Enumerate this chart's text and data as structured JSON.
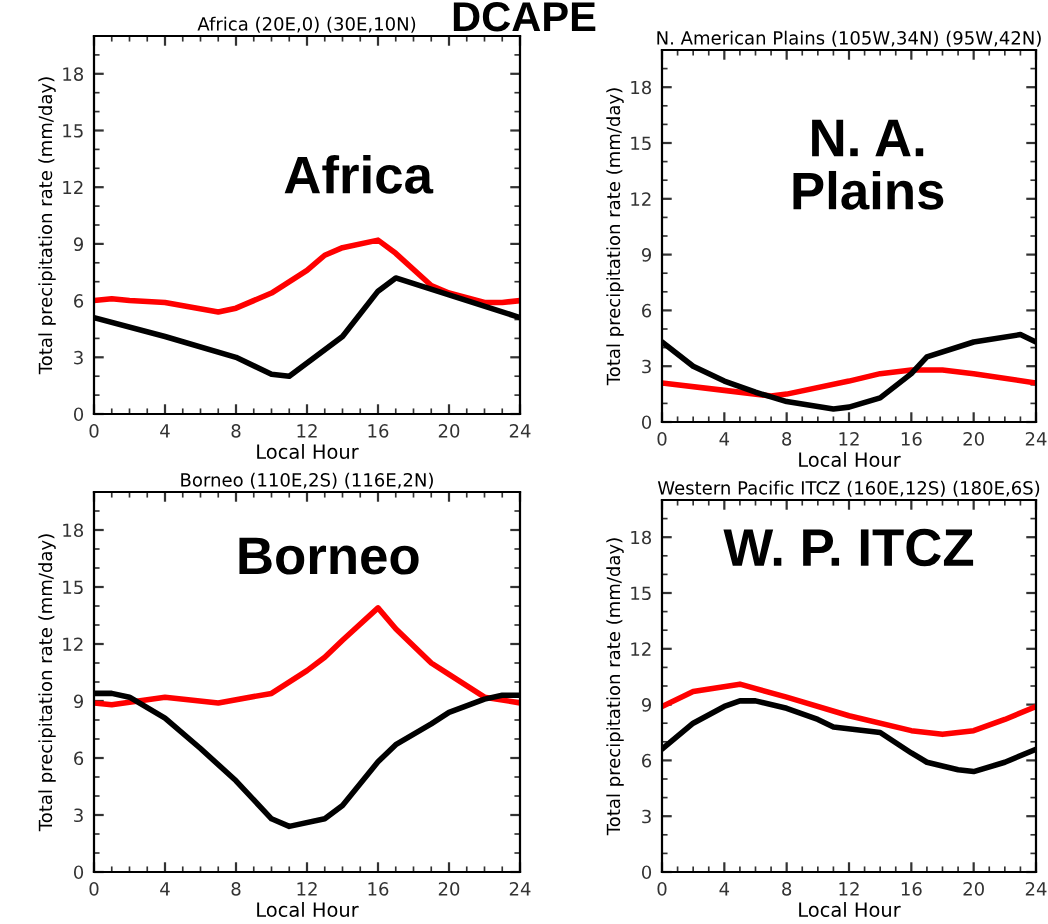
{
  "chart_data": [
    {
      "type": "line",
      "title": "Africa (20E,0) (30E,10N)",
      "xlabel": "Local Hour",
      "ylabel": "Total precipitation rate (mm/day)",
      "annotations": [
        "Africa",
        "DCAPE"
      ],
      "xlim": [
        0,
        24
      ],
      "ylim": [
        0,
        20
      ],
      "xticks": [
        0,
        4,
        8,
        12,
        16,
        20,
        24
      ],
      "yticks": [
        0,
        3,
        6,
        9,
        12,
        15,
        18
      ],
      "grid": false,
      "series": [
        {
          "color": "#ff0000",
          "x": [
            0,
            1,
            2,
            4,
            7,
            8,
            10,
            12,
            13,
            14,
            16,
            17,
            19,
            20,
            22,
            23,
            24
          ],
          "values": [
            6.0,
            6.1,
            6.0,
            5.9,
            5.4,
            5.6,
            6.4,
            7.6,
            8.4,
            8.8,
            9.2,
            8.5,
            6.8,
            6.4,
            5.9,
            5.9,
            6.0
          ]
        },
        {
          "color": "#000000",
          "x": [
            0,
            4,
            8,
            10,
            11,
            13,
            14,
            16,
            17,
            20,
            24
          ],
          "values": [
            5.1,
            4.1,
            3.0,
            2.1,
            2.0,
            3.4,
            4.1,
            6.5,
            7.2,
            6.3,
            5.1
          ]
        }
      ]
    },
    {
      "type": "line",
      "title": "N. American Plains (105W,34N) (95W,42N)",
      "xlabel": "Local Hour",
      "ylabel": "Total precipitation rate (mm/day)",
      "annotations": [
        "N. A.\nPlains"
      ],
      "xlim": [
        0,
        24
      ],
      "ylim": [
        0,
        20
      ],
      "xticks": [
        0,
        4,
        8,
        12,
        16,
        20,
        24
      ],
      "yticks": [
        0,
        3,
        6,
        9,
        12,
        15,
        18
      ],
      "grid": false,
      "series": [
        {
          "color": "#ff0000",
          "x": [
            0,
            4,
            7,
            8,
            12,
            14,
            16,
            18,
            20,
            24
          ],
          "values": [
            2.1,
            1.7,
            1.4,
            1.5,
            2.2,
            2.6,
            2.8,
            2.8,
            2.6,
            2.1
          ]
        },
        {
          "color": "#000000",
          "x": [
            0,
            2,
            4,
            6,
            8,
            11,
            12,
            14,
            16,
            17,
            20,
            23,
            24
          ],
          "values": [
            4.3,
            3.0,
            2.2,
            1.6,
            1.1,
            0.7,
            0.8,
            1.3,
            2.6,
            3.5,
            4.3,
            4.7,
            4.3
          ]
        }
      ]
    },
    {
      "type": "line",
      "title": "Borneo (110E,2S) (116E,2N)",
      "xlabel": "Local Hour",
      "ylabel": "Total precipitation rate (mm/day)",
      "annotations": [
        "Borneo"
      ],
      "xlim": [
        0,
        24
      ],
      "ylim": [
        0,
        20
      ],
      "xticks": [
        0,
        4,
        8,
        12,
        16,
        20,
        24
      ],
      "yticks": [
        0,
        3,
        6,
        9,
        12,
        15,
        18
      ],
      "grid": false,
      "series": [
        {
          "color": "#ff0000",
          "x": [
            0,
            1,
            4,
            7,
            10,
            12,
            13,
            14,
            16,
            17,
            19,
            20,
            22,
            24
          ],
          "values": [
            8.9,
            8.8,
            9.2,
            8.9,
            9.4,
            10.6,
            11.3,
            12.2,
            13.9,
            12.8,
            11.0,
            10.4,
            9.2,
            8.9
          ]
        },
        {
          "color": "#000000",
          "x": [
            0,
            1,
            2,
            4,
            6,
            8,
            10,
            11,
            13,
            14,
            16,
            17,
            19,
            20,
            22,
            23,
            24
          ],
          "values": [
            9.4,
            9.4,
            9.2,
            8.1,
            6.5,
            4.8,
            2.8,
            2.4,
            2.8,
            3.5,
            5.8,
            6.7,
            7.8,
            8.4,
            9.1,
            9.3,
            9.3
          ]
        }
      ]
    },
    {
      "type": "line",
      "title": "Western Pacific ITCZ (160E,12S) (180E,6S)",
      "xlabel": "Local Hour",
      "ylabel": "Total precipitation rate (mm/day)",
      "annotations": [
        "W. P. ITCZ"
      ],
      "xlim": [
        0,
        24
      ],
      "ylim": [
        0,
        20
      ],
      "xticks": [
        0,
        4,
        8,
        12,
        16,
        20,
        24
      ],
      "yticks": [
        0,
        3,
        6,
        9,
        12,
        15,
        18
      ],
      "grid": false,
      "series": [
        {
          "color": "#ff0000",
          "x": [
            0,
            2,
            5,
            8,
            12,
            16,
            18,
            20,
            22,
            24
          ],
          "values": [
            8.9,
            9.7,
            10.1,
            9.4,
            8.4,
            7.6,
            7.4,
            7.6,
            8.2,
            8.9
          ]
        },
        {
          "color": "#000000",
          "x": [
            0,
            2,
            4,
            5,
            6,
            8,
            10,
            11,
            14,
            16,
            17,
            19,
            20,
            22,
            24
          ],
          "values": [
            6.6,
            8.0,
            8.9,
            9.2,
            9.2,
            8.8,
            8.2,
            7.8,
            7.5,
            6.4,
            5.9,
            5.5,
            5.4,
            5.9,
            6.6
          ]
        }
      ]
    }
  ]
}
